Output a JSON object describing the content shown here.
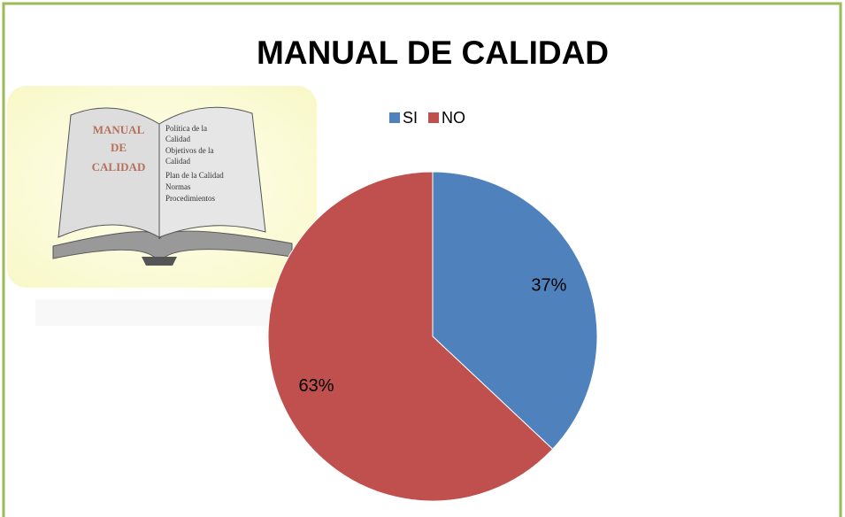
{
  "chart_data": {
    "type": "pie",
    "title": "MANUAL DE CALIDAD",
    "categories": [
      "SI",
      "NO"
    ],
    "values": [
      37,
      63
    ],
    "value_labels": [
      "37%",
      "63%"
    ],
    "colors": [
      "#4f81bd",
      "#c0504d"
    ],
    "legend": "top",
    "annotations": [
      "MANUAL",
      "DE",
      "CALIDAD",
      "Política de la",
      "Calidad",
      "Objetivos de la",
      "Calidad",
      "Plan de la Calidad",
      "Normas",
      "Procedimientos"
    ]
  }
}
